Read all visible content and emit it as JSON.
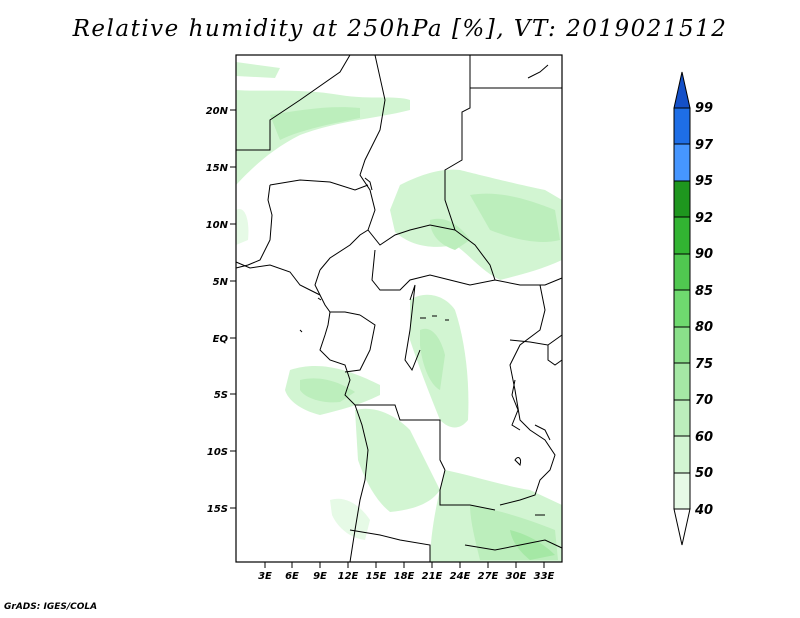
{
  "title": "Relative humidity at 250hPa [%], VT: 2019021512",
  "footer": "GrADS: IGES/COLA",
  "map": {
    "lat_ticks": [
      "20N",
      "15N",
      "10N",
      "5N",
      "EQ",
      "5S",
      "10S",
      "15S"
    ],
    "lon_ticks": [
      "3E",
      "6E",
      "9E",
      "12E",
      "15E",
      "18E",
      "21E",
      "24E",
      "27E",
      "30E",
      "33E"
    ]
  },
  "colorbar": {
    "levels": [
      "40",
      "50",
      "60",
      "70",
      "75",
      "80",
      "85",
      "90",
      "92",
      "95",
      "97",
      "99"
    ],
    "colors": [
      "#ffffff",
      "#e6fae6",
      "#d2f5d2",
      "#bceebc",
      "#a5e8a5",
      "#8ae08a",
      "#6fd96f",
      "#50c850",
      "#32b432",
      "#1e961e",
      "#4696ff",
      "#1e6ee6",
      "#1450c8"
    ]
  }
}
